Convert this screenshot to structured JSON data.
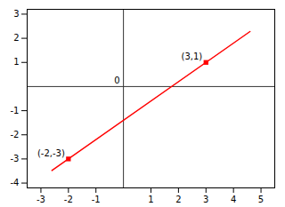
{
  "chart_data": {
    "type": "line",
    "series": [
      {
        "type": "line",
        "color": "#ff0000",
        "x": [
          -2.6,
          4.6
        ],
        "values": [
          -3.48,
          2.28
        ]
      },
      {
        "type": "scatter",
        "color": "#ff0000",
        "marker": "square",
        "x": [
          -2,
          3
        ],
        "values": [
          -3,
          1
        ]
      }
    ],
    "annotations": [
      {
        "text": "(-2,-3)",
        "x": -2,
        "y": -3
      },
      {
        "text": "(3,1)",
        "x": 3,
        "y": 1
      },
      {
        "text": "0",
        "x": 0,
        "y": 0
      }
    ],
    "xlim": [
      -3.5,
      5.5
    ],
    "xticks": [
      -3,
      -2,
      -1,
      1,
      2,
      3,
      4,
      5
    ],
    "ylim": [
      -4.2,
      3.2
    ],
    "yticks": [
      -4,
      -3,
      -2,
      -1,
      1,
      2,
      3
    ],
    "grid": false
  }
}
